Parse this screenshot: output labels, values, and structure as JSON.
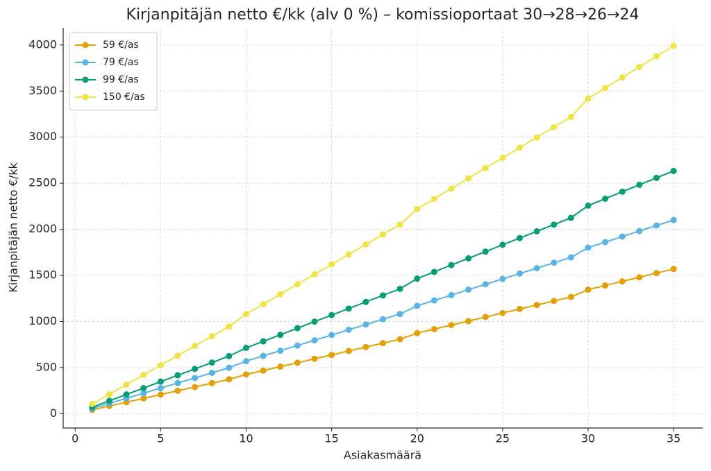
{
  "chart_data": {
    "type": "line",
    "title": "Kirjanpitäjän netto €/kk (alv 0 %) – komissioportaat 30→28→26→24",
    "x_label": "Asiakasmäärä",
    "y_label": "Kirjanpitäjän netto €/kk",
    "x": [
      1,
      2,
      3,
      4,
      5,
      6,
      7,
      8,
      9,
      10,
      11,
      12,
      13,
      14,
      15,
      16,
      17,
      18,
      19,
      20,
      21,
      22,
      23,
      24,
      25,
      26,
      27,
      28,
      29,
      30,
      31,
      32,
      33,
      34,
      35
    ],
    "series": [
      {
        "name": "59 €/as",
        "color": "#E69F00",
        "values": [
          41,
          83,
          124,
          165,
          207,
          248,
          289,
          330,
          372,
          425,
          467,
          510,
          552,
          595,
          637,
          680,
          722,
          765,
          807,
          873,
          917,
          961,
          1004,
          1048,
          1092,
          1135,
          1179,
          1222,
          1266,
          1345,
          1390,
          1435,
          1480,
          1525,
          1569
        ]
      },
      {
        "name": "79 €/as",
        "color": "#56B4E9",
        "values": [
          55,
          111,
          166,
          221,
          277,
          332,
          387,
          442,
          498,
          569,
          626,
          683,
          739,
          796,
          853,
          910,
          967,
          1024,
          1081,
          1169,
          1228,
          1286,
          1345,
          1403,
          1462,
          1520,
          1578,
          1637,
          1695,
          1801,
          1861,
          1921,
          1981,
          2041,
          2101
        ]
      },
      {
        "name": "99 €/as",
        "color": "#009E73",
        "values": [
          69,
          139,
          208,
          277,
          347,
          416,
          485,
          554,
          624,
          713,
          784,
          855,
          927,
          998,
          1069,
          1140,
          1212,
          1283,
          1354,
          1465,
          1538,
          1612,
          1685,
          1758,
          1832,
          1905,
          1978,
          2051,
          2125,
          2257,
          2332,
          2408,
          2483,
          2558,
          2633
        ]
      },
      {
        "name": "150 €/as",
        "color": "#F0E442",
        "values": [
          105,
          210,
          315,
          420,
          525,
          630,
          735,
          840,
          945,
          1080,
          1188,
          1296,
          1404,
          1512,
          1620,
          1728,
          1836,
          1944,
          2052,
          2220,
          2331,
          2442,
          2553,
          2664,
          2775,
          2886,
          2997,
          3108,
          3219,
          3420,
          3534,
          3648,
          3762,
          3876,
          3990
        ]
      }
    ],
    "xlim": [
      -0.7,
      36.7
    ],
    "xticks": [
      0,
      5,
      10,
      15,
      20,
      25,
      30,
      35
    ],
    "ylim": [
      -156,
      4187
    ],
    "yticks": [
      0,
      500,
      1000,
      1500,
      2000,
      2500,
      3000,
      3500,
      4000
    ],
    "grid": true,
    "legend": "upper-left"
  }
}
